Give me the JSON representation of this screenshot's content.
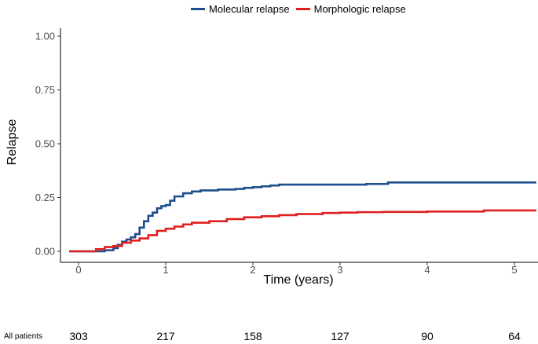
{
  "chart_data": {
    "type": "line",
    "title": "",
    "xlabel": "Time (years)",
    "ylabel": "Relapse",
    "xlim": [
      -0.2,
      5.25
    ],
    "ylim": [
      -0.05,
      1.02
    ],
    "xticks": [
      0,
      1,
      2,
      3,
      4,
      5
    ],
    "yticks": [
      0.0,
      0.25,
      0.5,
      0.75,
      1.0
    ],
    "ytick_labels": [
      "0.00",
      "0.25",
      "0.50",
      "0.75",
      "1.00"
    ],
    "grid": false,
    "legend_position": "top",
    "series": [
      {
        "name": "Molecular relapse",
        "color": "#1f4e8c",
        "x": [
          0,
          0.1,
          0.2,
          0.3,
          0.4,
          0.45,
          0.5,
          0.55,
          0.6,
          0.65,
          0.7,
          0.75,
          0.8,
          0.85,
          0.9,
          0.95,
          1.0,
          1.05,
          1.1,
          1.2,
          1.3,
          1.4,
          1.6,
          1.8,
          1.9,
          2.0,
          2.1,
          2.2,
          2.3,
          2.5,
          3.0,
          3.3,
          3.55,
          4.0,
          4.5,
          5.0,
          5.25
        ],
        "y": [
          0.0,
          0.0,
          0.0,
          0.005,
          0.015,
          0.03,
          0.045,
          0.055,
          0.065,
          0.08,
          0.11,
          0.14,
          0.165,
          0.18,
          0.2,
          0.21,
          0.215,
          0.235,
          0.255,
          0.27,
          0.278,
          0.283,
          0.287,
          0.29,
          0.295,
          0.298,
          0.302,
          0.306,
          0.31,
          0.31,
          0.31,
          0.313,
          0.32,
          0.32,
          0.32,
          0.32,
          0.32
        ]
      },
      {
        "name": "Morphologic relapse",
        "color": "#e01f1f",
        "x": [
          0,
          0.1,
          0.2,
          0.3,
          0.4,
          0.5,
          0.6,
          0.7,
          0.8,
          0.9,
          1.0,
          1.1,
          1.2,
          1.3,
          1.5,
          1.7,
          1.9,
          2.1,
          2.3,
          2.5,
          2.8,
          3.0,
          3.2,
          3.5,
          4.0,
          4.5,
          4.65,
          5.0,
          5.25
        ],
        "y": [
          0.0,
          0.0,
          0.01,
          0.02,
          0.025,
          0.04,
          0.05,
          0.06,
          0.075,
          0.095,
          0.105,
          0.115,
          0.125,
          0.133,
          0.14,
          0.15,
          0.158,
          0.163,
          0.168,
          0.173,
          0.178,
          0.18,
          0.182,
          0.183,
          0.185,
          0.185,
          0.19,
          0.19,
          0.19
        ]
      }
    ],
    "risk_table": {
      "label": "All patients",
      "times": [
        0,
        1,
        2,
        3,
        4,
        5
      ],
      "values": [
        "303",
        "217",
        "158",
        "127",
        "90",
        "64"
      ]
    }
  }
}
